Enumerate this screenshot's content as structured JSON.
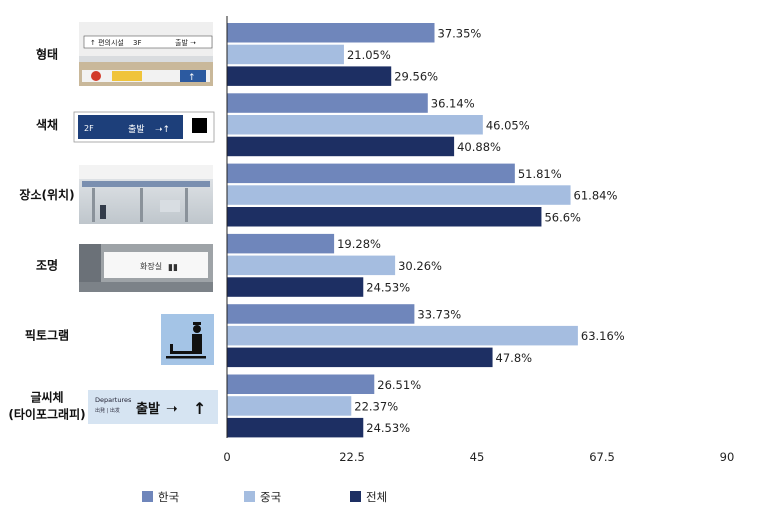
{
  "chart_data": {
    "type": "bar",
    "orientation": "horizontal",
    "categories": [
      "형태",
      "색채",
      "장소(위치)",
      "조명",
      "픽토그램",
      "글씨체\n(타이포그래피)"
    ],
    "series": [
      {
        "name": "한국",
        "color": "#6f86bb",
        "values": [
          37.35,
          36.14,
          51.81,
          19.28,
          33.73,
          26.51
        ]
      },
      {
        "name": "중국",
        "color": "#a5bde0",
        "values": [
          21.05,
          46.05,
          61.84,
          30.26,
          63.16,
          22.37
        ]
      },
      {
        "name": "전체",
        "color": "#1d2f63",
        "values": [
          29.56,
          40.88,
          56.6,
          24.53,
          47.8,
          24.53
        ]
      }
    ],
    "value_labels": [
      [
        "37.35%",
        "21.05%",
        "29.56%"
      ],
      [
        "36.14%",
        "46.05%",
        "40.88%"
      ],
      [
        "51.81%",
        "61.84%",
        "56.6%"
      ],
      [
        "19.28%",
        "30.26%",
        "24.53%"
      ],
      [
        "33.73%",
        "63.16%",
        "47.8%"
      ],
      [
        "26.51%",
        "22.37%",
        "24.53%"
      ]
    ],
    "xlim": [
      0,
      90
    ],
    "xticks": [
      "0",
      "22.5",
      "45",
      "67.5",
      "90"
    ],
    "grid": false,
    "legend_position": "bottom",
    "category_images": [
      {
        "name": "airport-signage-shape-photo",
        "texts": [
          "3F"
        ]
      },
      {
        "name": "departure-sign-color-photo",
        "texts": [
          "2F",
          "출발"
        ]
      },
      {
        "name": "terminal-hall-location-photo",
        "texts": []
      },
      {
        "name": "restroom-sign-lighting-photo",
        "texts": [
          "화장실"
        ]
      },
      {
        "name": "pictogram-icon-image",
        "texts": []
      },
      {
        "name": "departures-typography-sign",
        "texts": [
          "Departures",
          "출발"
        ]
      }
    ]
  }
}
